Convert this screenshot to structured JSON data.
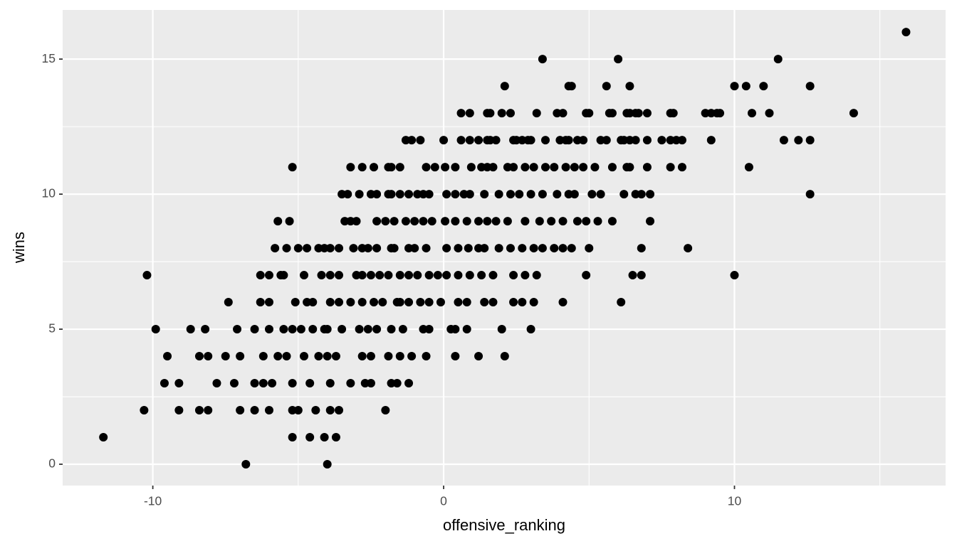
{
  "chart_data": {
    "type": "scatter",
    "x_label": "offensive_ranking",
    "y_label": "wins",
    "xlim": [
      -13.1,
      17.26
    ],
    "ylim": [
      -0.79,
      16.82
    ],
    "xticks": [
      -10,
      0,
      10
    ],
    "yticks": [
      0,
      5,
      10,
      15
    ],
    "grid": true,
    "color": "#000000",
    "x": [
      15.9,
      3.4,
      6.0,
      11.5,
      2.1,
      4.3,
      4.4,
      5.6,
      6.4,
      10.0,
      10.4,
      11.0,
      12.6,
      0.6,
      0.9,
      1.5,
      1.6,
      2.0,
      2.3,
      3.2,
      3.9,
      4.1,
      4.9,
      5.0,
      5.7,
      5.8,
      6.3,
      6.4,
      6.6,
      6.7,
      7.0,
      7.8,
      7.9,
      9.0,
      9.2,
      9.4,
      9.5,
      10.6,
      11.2,
      14.1,
      -1.3,
      -1.1,
      -0.8,
      0.0,
      0.6,
      0.9,
      1.2,
      1.5,
      1.6,
      1.8,
      2.4,
      2.5,
      2.7,
      2.9,
      3.0,
      3.5,
      4.0,
      4.2,
      4.3,
      4.6,
      4.8,
      5.4,
      5.6,
      6.1,
      6.2,
      6.4,
      6.6,
      7.0,
      7.5,
      7.8,
      8.0,
      8.2,
      9.2,
      11.7,
      12.2,
      12.6,
      -5.2,
      -3.2,
      -2.8,
      -2.4,
      -1.9,
      -1.8,
      -1.5,
      -0.6,
      -0.3,
      0.05,
      0.4,
      0.95,
      1.3,
      1.5,
      1.7,
      2.2,
      2.4,
      2.8,
      3.1,
      3.5,
      3.8,
      4.2,
      4.5,
      4.8,
      5.2,
      5.8,
      6.3,
      6.4,
      7.0,
      7.8,
      8.2,
      10.5,
      -3.5,
      -3.3,
      -2.9,
      -2.5,
      -2.3,
      -1.9,
      -1.8,
      -1.5,
      -1.2,
      -0.9,
      -0.7,
      -0.5,
      0.1,
      0.4,
      0.7,
      0.9,
      1.4,
      1.9,
      2.3,
      2.6,
      3.0,
      3.4,
      3.9,
      4.3,
      4.5,
      5.1,
      5.4,
      6.2,
      6.6,
      6.8,
      7.1,
      12.6,
      -5.7,
      -5.3,
      -3.4,
      -3.2,
      -3.0,
      -2.3,
      -2.0,
      -1.7,
      -1.3,
      -1.0,
      -0.7,
      -0.4,
      0.05,
      0.4,
      0.8,
      1.2,
      1.5,
      1.8,
      2.2,
      2.8,
      3.3,
      3.7,
      4.1,
      4.6,
      4.9,
      5.3,
      5.8,
      7.1,
      -5.8,
      -5.4,
      -5.0,
      -4.7,
      -4.3,
      -4.1,
      -3.9,
      -3.6,
      -3.1,
      -2.8,
      -2.6,
      -2.3,
      -1.8,
      -1.7,
      -1.2,
      -1.0,
      -0.6,
      0.1,
      0.5,
      0.85,
      1.2,
      1.4,
      1.9,
      2.3,
      2.7,
      3.1,
      3.4,
      3.8,
      4.1,
      4.4,
      5.0,
      6.8,
      8.4,
      -10.2,
      -6.3,
      -6.0,
      -5.6,
      -5.5,
      -4.8,
      -4.2,
      -3.9,
      -3.6,
      -3.0,
      -2.8,
      -2.5,
      -2.2,
      -1.9,
      -1.5,
      -1.2,
      -0.9,
      -0.5,
      -0.2,
      0.1,
      0.5,
      0.9,
      1.3,
      1.7,
      2.4,
      2.8,
      3.2,
      4.9,
      6.5,
      6.8,
      10.0,
      -7.4,
      -6.3,
      -6.0,
      -5.1,
      -4.7,
      -4.5,
      -3.9,
      -3.6,
      -3.2,
      -2.8,
      -2.4,
      -2.1,
      -1.6,
      -1.5,
      -1.2,
      -0.8,
      -0.5,
      -0.1,
      0.5,
      0.8,
      1.4,
      1.7,
      2.4,
      2.7,
      3.1,
      4.1,
      6.1,
      -9.9,
      -8.7,
      -8.2,
      -7.1,
      -6.5,
      -6.0,
      -5.5,
      -5.2,
      -4.9,
      -4.5,
      -4.1,
      -4.0,
      -3.5,
      -2.9,
      -2.6,
      -2.3,
      -1.8,
      -1.4,
      -0.7,
      -0.5,
      0.25,
      0.4,
      0.8,
      2.0,
      3.0,
      -9.5,
      -8.4,
      -8.1,
      -7.5,
      -7.0,
      -6.2,
      -5.7,
      -5.4,
      -4.8,
      -4.3,
      -4.0,
      -3.7,
      -2.8,
      -2.5,
      -1.9,
      -1.5,
      -1.1,
      -0.6,
      0.4,
      1.2,
      2.1,
      -9.6,
      -9.1,
      -7.8,
      -7.2,
      -6.5,
      -6.2,
      -5.9,
      -5.2,
      -4.6,
      -3.9,
      -3.2,
      -2.7,
      -2.5,
      -1.8,
      -1.6,
      -1.2,
      -10.3,
      -9.1,
      -8.4,
      -8.1,
      -7.0,
      -6.5,
      -6.0,
      -5.2,
      -5.0,
      -4.4,
      -3.9,
      -3.6,
      -2.0,
      -11.7,
      -5.2,
      -4.6,
      -4.1,
      -3.7,
      -6.8,
      -4.0
    ],
    "values": [
      16,
      15,
      15,
      15,
      14,
      14,
      14,
      14,
      14,
      14,
      14,
      14,
      14,
      13,
      13,
      13,
      13,
      13,
      13,
      13,
      13,
      13,
      13,
      13,
      13,
      13,
      13,
      13,
      13,
      13,
      13,
      13,
      13,
      13,
      13,
      13,
      13,
      13,
      13,
      13,
      12,
      12,
      12,
      12,
      12,
      12,
      12,
      12,
      12,
      12,
      12,
      12,
      12,
      12,
      12,
      12,
      12,
      12,
      12,
      12,
      12,
      12,
      12,
      12,
      12,
      12,
      12,
      12,
      12,
      12,
      12,
      12,
      12,
      12,
      12,
      12,
      11,
      11,
      11,
      11,
      11,
      11,
      11,
      11,
      11,
      11,
      11,
      11,
      11,
      11,
      11,
      11,
      11,
      11,
      11,
      11,
      11,
      11,
      11,
      11,
      11,
      11,
      11,
      11,
      11,
      11,
      11,
      11,
      10,
      10,
      10,
      10,
      10,
      10,
      10,
      10,
      10,
      10,
      10,
      10,
      10,
      10,
      10,
      10,
      10,
      10,
      10,
      10,
      10,
      10,
      10,
      10,
      10,
      10,
      10,
      10,
      10,
      10,
      10,
      10,
      9,
      9,
      9,
      9,
      9,
      9,
      9,
      9,
      9,
      9,
      9,
      9,
      9,
      9,
      9,
      9,
      9,
      9,
      9,
      9,
      9,
      9,
      9,
      9,
      9,
      9,
      9,
      9,
      8,
      8,
      8,
      8,
      8,
      8,
      8,
      8,
      8,
      8,
      8,
      8,
      8,
      8,
      8,
      8,
      8,
      8,
      8,
      8,
      8,
      8,
      8,
      8,
      8,
      8,
      8,
      8,
      8,
      8,
      8,
      8,
      8,
      7,
      7,
      7,
      7,
      7,
      7,
      7,
      7,
      7,
      7,
      7,
      7,
      7,
      7,
      7,
      7,
      7,
      7,
      7,
      7,
      7,
      7,
      7,
      7,
      7,
      7,
      7,
      7,
      7,
      7,
      7,
      6,
      6,
      6,
      6,
      6,
      6,
      6,
      6,
      6,
      6,
      6,
      6,
      6,
      6,
      6,
      6,
      6,
      6,
      6,
      6,
      6,
      6,
      6,
      6,
      6,
      6,
      6,
      5,
      5,
      5,
      5,
      5,
      5,
      5,
      5,
      5,
      5,
      5,
      5,
      5,
      5,
      5,
      5,
      5,
      5,
      5,
      5,
      5,
      5,
      5,
      5,
      5,
      4,
      4,
      4,
      4,
      4,
      4,
      4,
      4,
      4,
      4,
      4,
      4,
      4,
      4,
      4,
      4,
      4,
      4,
      4,
      4,
      4,
      3,
      3,
      3,
      3,
      3,
      3,
      3,
      3,
      3,
      3,
      3,
      3,
      3,
      3,
      3,
      3,
      2,
      2,
      2,
      2,
      2,
      2,
      2,
      2,
      2,
      2,
      2,
      2,
      2,
      1,
      1,
      1,
      1,
      1,
      0,
      0
    ]
  }
}
